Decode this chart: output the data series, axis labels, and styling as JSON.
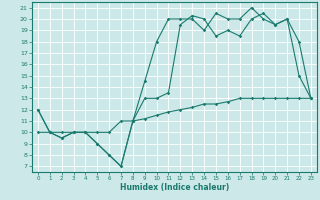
{
  "xlabel": "Humidex (Indice chaleur)",
  "bg_color": "#cce8e8",
  "line_color": "#1a7a6e",
  "grid_color": "#ffffff",
  "xlim": [
    -0.5,
    23.5
  ],
  "ylim": [
    6.5,
    21.5
  ],
  "yticks": [
    7,
    8,
    9,
    10,
    11,
    12,
    13,
    14,
    15,
    16,
    17,
    18,
    19,
    20,
    21
  ],
  "xticks": [
    0,
    1,
    2,
    3,
    4,
    5,
    6,
    7,
    8,
    9,
    10,
    11,
    12,
    13,
    14,
    15,
    16,
    17,
    18,
    19,
    20,
    21,
    22,
    23
  ],
  "line1_x": [
    0,
    1,
    2,
    3,
    4,
    5,
    6,
    7,
    8,
    9,
    10,
    11,
    12,
    13,
    14,
    15,
    16,
    17,
    18,
    19,
    20,
    21,
    22,
    23
  ],
  "line1_y": [
    12,
    10,
    9.5,
    10,
    10,
    9,
    8,
    7,
    11,
    14.5,
    18,
    20,
    20,
    20,
    19,
    20.5,
    20,
    20,
    21,
    20,
    19.5,
    20,
    15,
    13
  ],
  "line2_x": [
    0,
    1,
    2,
    3,
    4,
    5,
    6,
    7,
    8,
    9,
    10,
    11,
    12,
    13,
    14,
    15,
    16,
    17,
    18,
    19,
    20,
    21,
    22,
    23
  ],
  "line2_y": [
    12,
    10,
    9.5,
    10,
    10,
    9,
    8,
    7,
    11,
    13,
    13,
    13.5,
    19.5,
    20.3,
    20,
    18.5,
    19,
    18.5,
    20,
    20.5,
    19.5,
    20,
    18,
    13
  ],
  "line3_x": [
    0,
    1,
    2,
    3,
    4,
    5,
    6,
    7,
    8,
    9,
    10,
    11,
    12,
    13,
    14,
    15,
    16,
    17,
    18,
    19,
    20,
    21,
    22,
    23
  ],
  "line3_y": [
    10,
    10,
    10,
    10,
    10,
    10,
    10,
    11,
    11,
    11.2,
    11.5,
    11.8,
    12,
    12.2,
    12.5,
    12.5,
    12.7,
    13,
    13,
    13,
    13,
    13,
    13,
    13
  ]
}
